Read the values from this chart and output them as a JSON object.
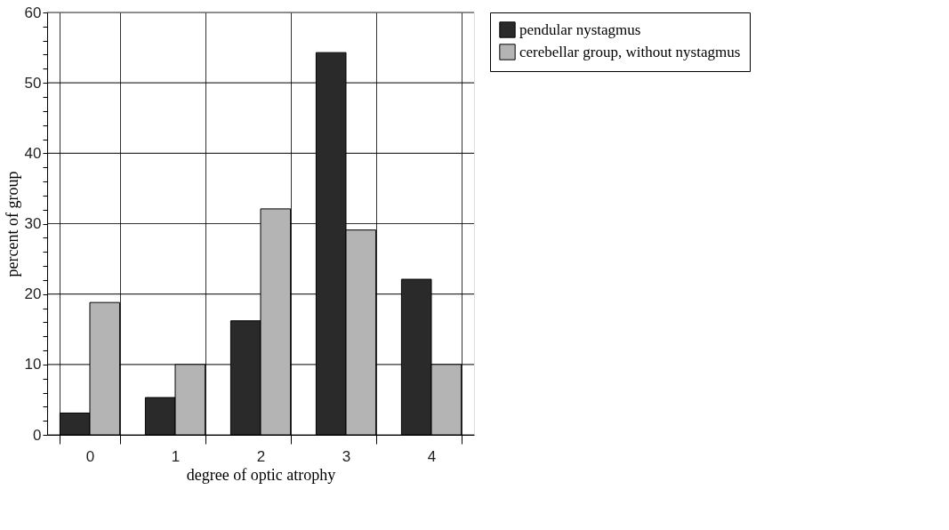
{
  "chart_data": {
    "type": "bar",
    "xlabel": "degree of optic atrophy",
    "ylabel": "percent of group",
    "categories": [
      "0",
      "1",
      "2",
      "3",
      "4"
    ],
    "series": [
      {
        "name": "pendular nystagmus",
        "color": "#2a2a2a",
        "values": [
          3.1,
          5.3,
          16.2,
          54.3,
          22.1
        ]
      },
      {
        "name": "cerebellar group, without nystagmus",
        "color": "#b4b4b4",
        "values": [
          18.8,
          10.0,
          32.1,
          29.1,
          10.0
        ]
      }
    ],
    "ylim": [
      0,
      60
    ],
    "yticks": [
      0,
      {
        "value": 2,
        "label": null
      },
      {
        "value": 4,
        "label": null
      },
      {
        "value": 6,
        "label": null
      },
      {
        "value": 8,
        "label": null
      },
      10,
      {
        "value": 12,
        "label": null
      },
      {
        "value": 14,
        "label": null
      },
      {
        "value": 16,
        "label": null
      },
      {
        "value": 18,
        "label": null
      },
      20,
      {
        "value": 22,
        "label": null
      },
      {
        "value": 24,
        "label": null
      },
      {
        "value": 26,
        "label": null
      },
      {
        "value": 28,
        "label": null
      },
      30,
      {
        "value": 32,
        "label": null
      },
      {
        "value": 34,
        "label": null
      },
      {
        "value": 36,
        "label": null
      },
      {
        "value": 38,
        "label": null
      },
      40,
      {
        "value": 42,
        "label": null
      },
      {
        "value": 44,
        "label": null
      },
      {
        "value": 46,
        "label": null
      },
      {
        "value": 48,
        "label": null
      },
      50,
      {
        "value": 52,
        "label": null
      },
      {
        "value": 54,
        "label": null
      },
      {
        "value": 56,
        "label": null
      },
      {
        "value": 58,
        "label": null
      },
      60
    ],
    "grid": true,
    "legend": "top right"
  }
}
